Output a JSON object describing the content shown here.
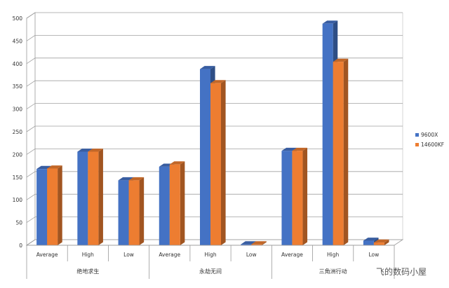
{
  "chart_data": {
    "type": "bar",
    "title": "",
    "xlabel": "",
    "ylabel": "",
    "ylim": [
      0,
      500
    ],
    "yticks": [
      0,
      50,
      100,
      150,
      200,
      250,
      300,
      350,
      400,
      450,
      500
    ],
    "grid": true,
    "legend_position": "right",
    "style": "3d-clustered-column",
    "groups": [
      {
        "name": "绝地求生",
        "categories": [
          "Average",
          "High",
          "Low"
        ]
      },
      {
        "name": "永劫无间",
        "categories": [
          "Average",
          "High",
          "Low"
        ]
      },
      {
        "name": "三角洲行动",
        "categories": [
          "Average",
          "High",
          "Low"
        ]
      }
    ],
    "series": [
      {
        "name": "9600X",
        "color": "#4472C4",
        "values": [
          168,
          206,
          143,
          173,
          388,
          2,
          208,
          488,
          10
        ]
      },
      {
        "name": "14600KF",
        "color": "#ED7D31",
        "values": [
          169,
          206,
          143,
          178,
          357,
          2,
          208,
          404,
          6
        ]
      }
    ]
  },
  "watermark": "飞的数码小屋"
}
